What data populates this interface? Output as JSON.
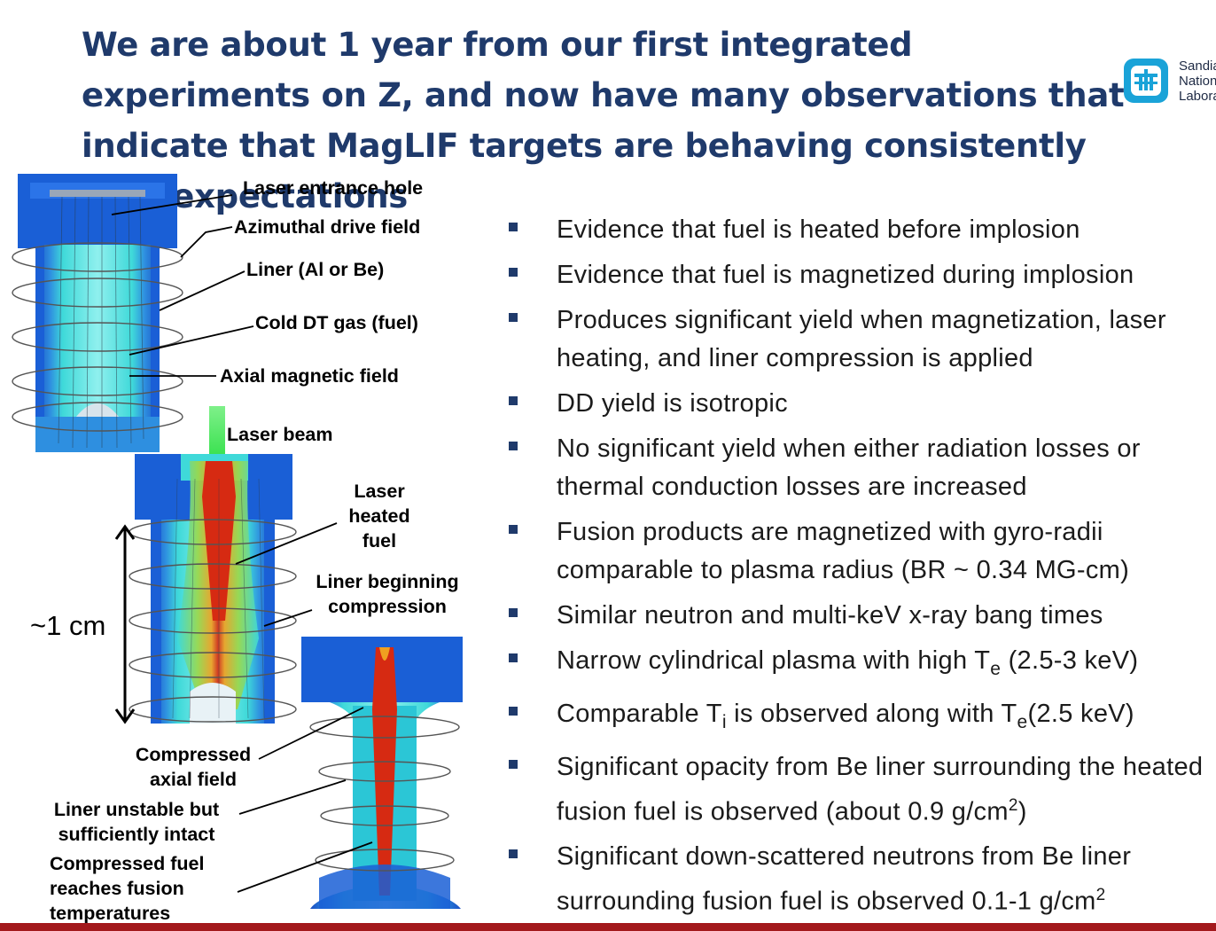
{
  "slide": {
    "title": "We are about 1 year from our first integrated experiments on Z, and now have many observations that indicate that MagLIF targets are behaving consistently with expectations"
  },
  "logo": {
    "icon": "sandia-thunderbird-icon",
    "lines": [
      "Sandia",
      "National",
      "Laboratories"
    ]
  },
  "figure": {
    "labels": {
      "laser_entrance_hole": "Laser entrance hole",
      "azimuthal_drive_field": "Azimuthal drive field",
      "liner": "Liner (Al or Be)",
      "cold_dt_gas": "Cold DT gas (fuel)",
      "axial_magnetic_field": "Axial magnetic field",
      "laser_beam": "Laser beam",
      "laser_heated_fuel": [
        "Laser",
        "heated",
        "fuel"
      ],
      "liner_beginning_compression": [
        "Liner beginning",
        "compression"
      ],
      "compressed_axial_field": [
        "Compressed",
        "axial field"
      ],
      "liner_unstable": [
        "Liner unstable but",
        "sufficiently intact"
      ],
      "compressed_fuel": [
        "Compressed fuel",
        "reaches fusion",
        "temperatures"
      ]
    },
    "scale_label": "~1 cm",
    "colors": {
      "liner_blue": "#1a5fd6",
      "fuel_cyan": "#3fd9d9",
      "laser_green": "#33e04a",
      "hot_red": "#d62a12"
    }
  },
  "bullets": [
    {
      "parts": [
        {
          "text": "Evidence that fuel is heated before implosion"
        }
      ]
    },
    {
      "parts": [
        {
          "text": "Evidence that fuel is magnetized during implosion"
        }
      ]
    },
    {
      "parts": [
        {
          "text": "Produces significant yield when magnetization, laser heating, and liner compression is applied"
        }
      ]
    },
    {
      "parts": [
        {
          "text": "DD yield is isotropic"
        }
      ]
    },
    {
      "parts": [
        {
          "text": "No significant yield when either radiation losses or thermal conduction losses are increased"
        }
      ]
    },
    {
      "parts": [
        {
          "text": "Fusion products are magnetized with gyro-radii comparable to plasma radius (BR ~ 0.34 MG-cm)"
        }
      ]
    },
    {
      "parts": [
        {
          "text": "Similar neutron and multi-keV x-ray bang times"
        }
      ]
    },
    {
      "parts": [
        {
          "text": "Narrow cylindrical plasma with high T"
        },
        {
          "text": "e",
          "sub": true
        },
        {
          "text": " (2.5-3 keV)"
        }
      ]
    },
    {
      "parts": [
        {
          "text": "Comparable T"
        },
        {
          "text": "i",
          "sub": true
        },
        {
          "text": " is observed along with T"
        },
        {
          "text": "e",
          "sub": true
        },
        {
          "text": "(2.5 keV)"
        }
      ]
    },
    {
      "parts": [
        {
          "text": "Significant opacity from Be liner surrounding the heated fusion fuel is observed (about 0.9 g/cm"
        },
        {
          "text": "2",
          "sup": true
        },
        {
          "text": ")"
        }
      ]
    },
    {
      "parts": [
        {
          "text": "Significant down-scattered neutrons from Be liner surrounding fusion fuel is observed 0.1-1 g/cm"
        },
        {
          "text": "2",
          "sup": true
        }
      ]
    }
  ],
  "footer": {
    "bar_color": "#a3191c"
  }
}
